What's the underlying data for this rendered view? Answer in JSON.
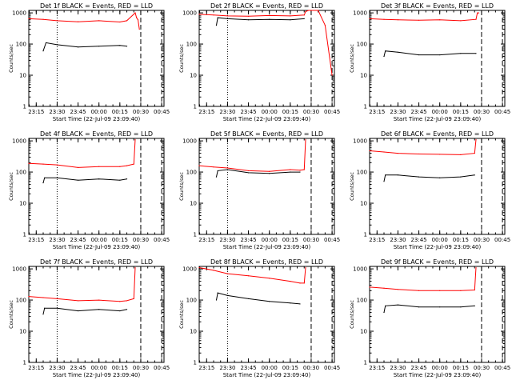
{
  "figure": {
    "background": "#ffffff",
    "axis_color": "#000000",
    "events_color": "#000000",
    "lld_color": "#ff0000"
  },
  "chart_data": [
    {
      "type": "line",
      "title": "Det 1f BLACK = Events, RED = LLD",
      "xlabel": "Start Time (22-Jul-09 23:09:40)",
      "ylabel": "Counts/sec",
      "yscale": "log",
      "ylim": [
        1,
        1200
      ],
      "yticks": [
        "1",
        "10",
        "100",
        "1000"
      ],
      "xticks": [
        "23:15",
        "23:30",
        "23:45",
        "00:00",
        "00:15",
        "00:30",
        "00:45"
      ],
      "vlines": [
        {
          "style": "dotted",
          "x": "23:30"
        },
        {
          "style": "dashed",
          "x": "00:30"
        },
        {
          "style": "dashed",
          "x": "00:45"
        }
      ],
      "series": [
        {
          "role": "lld",
          "x": [
            "23:09:40",
            "23:20",
            "23:30",
            "23:45",
            "00:00",
            "00:15",
            "00:20",
            "00:26",
            "00:27",
            "00:28",
            "00:29"
          ],
          "y": [
            650,
            620,
            560,
            520,
            560,
            510,
            560,
            1000,
            700,
            600,
            300
          ]
        },
        {
          "role": "events",
          "x": [
            "23:20",
            "23:22",
            "23:30",
            "23:45",
            "00:00",
            "00:15",
            "00:20"
          ],
          "y": [
            60,
            110,
            95,
            80,
            85,
            90,
            85
          ]
        }
      ]
    },
    {
      "type": "line",
      "title": "Det 2f BLACK = Events, RED = LLD",
      "xlabel": "Start Time (22-Jul-09 23:09:40)",
      "ylabel": "Counts/sec",
      "yscale": "log",
      "ylim": [
        1,
        1200
      ],
      "yticks": [
        "1",
        "10",
        "100",
        "1000"
      ],
      "xticks": [
        "23:15",
        "23:30",
        "23:45",
        "00:00",
        "00:15",
        "00:30",
        "00:45"
      ],
      "vlines": [
        {
          "style": "dotted",
          "x": "23:30"
        },
        {
          "style": "dashed",
          "x": "00:30"
        },
        {
          "style": "dashed",
          "x": "00:45"
        }
      ],
      "series": [
        {
          "role": "lld",
          "x": [
            "23:09:40",
            "23:20",
            "23:30",
            "23:45",
            "00:00",
            "00:15",
            "00:25",
            "00:26",
            "00:28",
            "00:30",
            "00:35",
            "00:40",
            "00:45"
          ],
          "y": [
            900,
            850,
            800,
            780,
            820,
            800,
            850,
            1100,
            1200,
            1200,
            1200,
            400,
            10
          ]
        },
        {
          "role": "events",
          "x": [
            "23:22",
            "23:23",
            "23:30",
            "23:45",
            "00:00",
            "00:15",
            "00:25"
          ],
          "y": [
            400,
            700,
            650,
            600,
            620,
            600,
            650
          ]
        }
      ]
    },
    {
      "type": "line",
      "title": "Det 3f BLACK = Events, RED = LLD",
      "xlabel": "Start Time (22-Jul-09 23:09:40)",
      "ylabel": "Counts/sec",
      "yscale": "log",
      "ylim": [
        1,
        1200
      ],
      "yticks": [
        "1",
        "10",
        "100",
        "1000"
      ],
      "xticks": [
        "23:15",
        "23:30",
        "23:45",
        "00:00",
        "00:15",
        "00:30",
        "00:45"
      ],
      "vlines": [
        {
          "style": "dashed",
          "x": "00:30"
        },
        {
          "style": "dashed",
          "x": "00:45"
        }
      ],
      "series": [
        {
          "role": "lld",
          "x": [
            "23:09:40",
            "23:20",
            "23:30",
            "23:45",
            "00:00",
            "00:15",
            "00:26",
            "00:27",
            "00:28"
          ],
          "y": [
            650,
            620,
            600,
            580,
            600,
            560,
            620,
            1000,
            1000
          ]
        },
        {
          "role": "events",
          "x": [
            "23:20",
            "23:21",
            "23:30",
            "23:45",
            "00:00",
            "00:15",
            "00:26"
          ],
          "y": [
            40,
            60,
            55,
            45,
            45,
            50,
            50
          ]
        }
      ]
    },
    {
      "type": "line",
      "title": "Det 4f BLACK = Events, RED = LLD",
      "xlabel": "Start Time (22-Jul-09 23:09:40)",
      "ylabel": "Counts/sec",
      "yscale": "log",
      "ylim": [
        1,
        1200
      ],
      "yticks": [
        "1",
        "10",
        "100",
        "1000"
      ],
      "xticks": [
        "23:15",
        "23:30",
        "23:45",
        "00:00",
        "00:15",
        "00:30",
        "00:45"
      ],
      "vlines": [
        {
          "style": "dotted",
          "x": "23:30"
        },
        {
          "style": "dashed",
          "x": "00:30"
        },
        {
          "style": "dashed",
          "x": "00:45"
        }
      ],
      "series": [
        {
          "role": "lld",
          "x": [
            "23:09:40",
            "23:20",
            "23:30",
            "23:45",
            "00:00",
            "00:15",
            "00:20",
            "00:25",
            "00:26"
          ],
          "y": [
            190,
            180,
            170,
            140,
            150,
            150,
            160,
            180,
            1100
          ]
        },
        {
          "role": "events",
          "x": [
            "23:20",
            "23:21",
            "23:30",
            "23:45",
            "00:00",
            "00:15",
            "00:20"
          ],
          "y": [
            45,
            65,
            65,
            55,
            60,
            55,
            60
          ]
        }
      ]
    },
    {
      "type": "line",
      "title": "Det 5f BLACK = Events, RED = LLD",
      "xlabel": "Start Time (22-Jul-09 23:09:40)",
      "ylabel": "Counts/sec",
      "yscale": "log",
      "ylim": [
        1,
        1200
      ],
      "yticks": [
        "1",
        "10",
        "100",
        "1000"
      ],
      "xticks": [
        "23:15",
        "23:30",
        "23:45",
        "00:00",
        "00:15",
        "00:30",
        "00:45"
      ],
      "vlines": [
        {
          "style": "dotted",
          "x": "23:30"
        },
        {
          "style": "dashed",
          "x": "00:30"
        },
        {
          "style": "dashed",
          "x": "00:45"
        }
      ],
      "series": [
        {
          "role": "lld",
          "x": [
            "23:09:40",
            "23:20",
            "23:30",
            "23:45",
            "00:00",
            "00:15",
            "00:22",
            "00:25",
            "00:26"
          ],
          "y": [
            160,
            145,
            135,
            110,
            105,
            120,
            115,
            120,
            1100
          ]
        },
        {
          "role": "events",
          "x": [
            "23:22",
            "23:23",
            "23:30",
            "23:45",
            "00:00",
            "00:15",
            "00:22"
          ],
          "y": [
            70,
            110,
            120,
            95,
            90,
            100,
            100
          ]
        }
      ]
    },
    {
      "type": "line",
      "title": "Det 6f BLACK = Events, RED = LLD",
      "xlabel": "Start Time (22-Jul-09 23:09:40)",
      "ylabel": "Counts/sec",
      "yscale": "log",
      "ylim": [
        1,
        1200
      ],
      "yticks": [
        "1",
        "10",
        "100",
        "1000"
      ],
      "xticks": [
        "23:15",
        "23:30",
        "23:45",
        "00:00",
        "00:15",
        "00:30",
        "00:45"
      ],
      "vlines": [
        {
          "style": "dashed",
          "x": "00:30"
        },
        {
          "style": "dashed",
          "x": "00:45"
        }
      ],
      "series": [
        {
          "role": "lld",
          "x": [
            "23:09:40",
            "23:20",
            "23:30",
            "23:45",
            "00:00",
            "00:15",
            "00:25",
            "00:26"
          ],
          "y": [
            480,
            440,
            400,
            380,
            370,
            360,
            400,
            1100
          ]
        },
        {
          "role": "events",
          "x": [
            "23:20",
            "23:21",
            "23:30",
            "23:45",
            "00:00",
            "00:15",
            "00:25"
          ],
          "y": [
            50,
            80,
            80,
            70,
            65,
            70,
            80
          ]
        }
      ]
    },
    {
      "type": "line",
      "title": "Det 7f BLACK = Events, RED = LLD",
      "xlabel": "Start Time (22-Jul-09 23:09:40)",
      "ylabel": "Counts/sec",
      "yscale": "log",
      "ylim": [
        1,
        1200
      ],
      "yticks": [
        "1",
        "10",
        "100",
        "1000"
      ],
      "xticks": [
        "23:15",
        "23:30",
        "23:45",
        "00:00",
        "00:15",
        "00:30",
        "00:45"
      ],
      "vlines": [
        {
          "style": "dotted",
          "x": "23:30"
        },
        {
          "style": "dashed",
          "x": "00:30"
        },
        {
          "style": "dashed",
          "x": "00:45"
        }
      ],
      "series": [
        {
          "role": "lld",
          "x": [
            "23:09:40",
            "23:20",
            "23:30",
            "23:45",
            "00:00",
            "00:15",
            "00:20",
            "00:25",
            "00:26"
          ],
          "y": [
            130,
            120,
            110,
            95,
            100,
            90,
            95,
            110,
            1100
          ]
        },
        {
          "role": "events",
          "x": [
            "23:20",
            "23:21",
            "23:30",
            "23:45",
            "00:00",
            "00:15",
            "00:20"
          ],
          "y": [
            35,
            55,
            55,
            45,
            50,
            45,
            50
          ]
        }
      ]
    },
    {
      "type": "line",
      "title": "Det 8f BLACK = Events, RED = LLD",
      "xlabel": "Start Time (22-Jul-09 23:09:40)",
      "ylabel": "Counts/sec",
      "yscale": "log",
      "ylim": [
        1,
        1200
      ],
      "yticks": [
        "1",
        "10",
        "100",
        "1000"
      ],
      "xticks": [
        "23:15",
        "23:30",
        "23:45",
        "00:00",
        "00:15",
        "00:30",
        "00:45"
      ],
      "vlines": [
        {
          "style": "dotted",
          "x": "23:30"
        },
        {
          "style": "dashed",
          "x": "00:30"
        },
        {
          "style": "dashed",
          "x": "00:45"
        }
      ],
      "series": [
        {
          "role": "lld",
          "x": [
            "23:09:40",
            "23:20",
            "23:30",
            "23:45",
            "00:00",
            "00:15",
            "00:22",
            "00:25",
            "00:26"
          ],
          "y": [
            1100,
            900,
            700,
            600,
            500,
            400,
            350,
            350,
            1100
          ]
        },
        {
          "role": "events",
          "x": [
            "23:22",
            "23:23",
            "23:30",
            "23:45",
            "00:00",
            "00:15",
            "00:22"
          ],
          "y": [
            100,
            170,
            140,
            110,
            90,
            80,
            75
          ]
        }
      ]
    },
    {
      "type": "line",
      "title": "Det 9f BLACK = Events, RED = LLD",
      "xlabel": "Start Time (22-Jul-09 23:09:40)",
      "ylabel": "Counts/sec",
      "yscale": "log",
      "ylim": [
        1,
        1200
      ],
      "yticks": [
        "1",
        "10",
        "100",
        "1000"
      ],
      "xticks": [
        "23:15",
        "23:30",
        "23:45",
        "00:00",
        "00:15",
        "00:30",
        "00:45"
      ],
      "vlines": [
        {
          "style": "dashed",
          "x": "00:30"
        },
        {
          "style": "dashed",
          "x": "00:45"
        }
      ],
      "series": [
        {
          "role": "lld",
          "x": [
            "23:09:40",
            "23:20",
            "23:30",
            "23:45",
            "00:00",
            "00:15",
            "00:25",
            "00:26"
          ],
          "y": [
            260,
            240,
            220,
            200,
            200,
            200,
            210,
            1100
          ]
        },
        {
          "role": "events",
          "x": [
            "23:20",
            "23:21",
            "23:30",
            "23:45",
            "00:00",
            "00:15",
            "00:25"
          ],
          "y": [
            40,
            65,
            70,
            60,
            60,
            60,
            65
          ]
        }
      ]
    }
  ]
}
